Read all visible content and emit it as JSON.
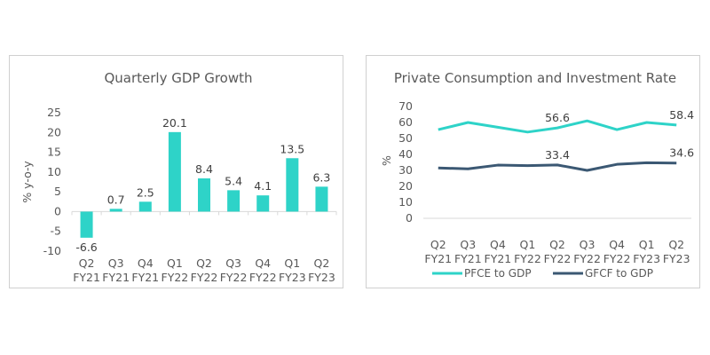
{
  "chart_data": [
    {
      "type": "bar",
      "title": "Quarterly GDP Growth",
      "xlabel": "",
      "ylabel": "% y-o-y",
      "categories": [
        [
          "Q2",
          "FY21"
        ],
        [
          "Q3",
          "FY21"
        ],
        [
          "Q4",
          "FY21"
        ],
        [
          "Q1",
          "FY22"
        ],
        [
          "Q2",
          "FY22"
        ],
        [
          "Q3",
          "FY22"
        ],
        [
          "Q4",
          "FY22"
        ],
        [
          "Q1",
          "FY23"
        ],
        [
          "Q2",
          "FY23"
        ]
      ],
      "values": [
        -6.6,
        0.7,
        2.5,
        20.1,
        8.4,
        5.4,
        4.1,
        13.5,
        6.3
      ],
      "data_labels": [
        "-6.6",
        "0.7",
        "2.5",
        "20.1",
        "8.4",
        "5.4",
        "4.1",
        "13.5",
        "6.3"
      ],
      "ylim": [
        -10,
        25
      ],
      "yticks": [
        -10,
        -5,
        0,
        5,
        10,
        15,
        20,
        25
      ],
      "color": "#2ed3c8",
      "grid": false
    },
    {
      "type": "line",
      "title": "Private Consumption and Investment Rate",
      "xlabel": "",
      "ylabel": "%",
      "categories": [
        [
          "Q2",
          "FY21"
        ],
        [
          "Q3",
          "FY21"
        ],
        [
          "Q4",
          "FY21"
        ],
        [
          "Q1",
          "FY22"
        ],
        [
          "Q2",
          "FY22"
        ],
        [
          "Q3",
          "FY22"
        ],
        [
          "Q4",
          "FY22"
        ],
        [
          "Q1",
          "FY23"
        ],
        [
          "Q2",
          "FY23"
        ]
      ],
      "ylim": [
        0,
        70
      ],
      "yticks": [
        0,
        10,
        20,
        30,
        40,
        50,
        60,
        70
      ],
      "grid": false,
      "legend_position": "bottom",
      "series": [
        {
          "name": "PFCE to GDP",
          "color": "#2ed3c8",
          "values": [
            55.5,
            60,
            57,
            54,
            56.6,
            61,
            55.5,
            60,
            58.4
          ],
          "labels": [
            {
              "index": 4,
              "text": "56.6"
            },
            {
              "index": 8,
              "text": "58.4"
            }
          ]
        },
        {
          "name": "GFCF to GDP",
          "color": "#3b5873",
          "values": [
            31.5,
            31,
            33.3,
            33,
            33.4,
            30,
            33.8,
            34.8,
            34.6
          ],
          "labels": [
            {
              "index": 4,
              "text": "33.4"
            },
            {
              "index": 8,
              "text": "34.6"
            }
          ]
        }
      ]
    }
  ]
}
